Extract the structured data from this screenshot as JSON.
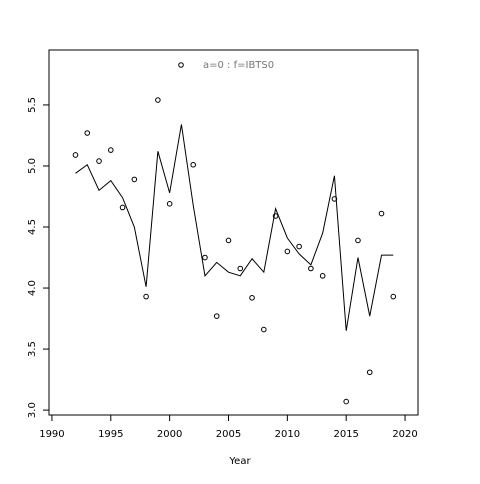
{
  "chart_data": {
    "type": "scatter-line",
    "xlabel": "Year",
    "x": [
      1992,
      1993,
      1994,
      1995,
      1996,
      1997,
      1998,
      1999,
      2000,
      2001,
      2002,
      2003,
      2004,
      2005,
      2006,
      2007,
      2008,
      2009,
      2010,
      2011,
      2012,
      2013,
      2014,
      2015,
      2016,
      2017,
      2018,
      2019
    ],
    "series": [
      {
        "name": "a=0  :  f=IBTS0",
        "color": "#000000",
        "marker": "circle",
        "values": [
          5.09,
          5.27,
          5.04,
          5.13,
          4.66,
          4.89,
          3.93,
          5.54,
          4.69,
          null,
          5.01,
          4.25,
          3.77,
          4.39,
          4.16,
          3.92,
          3.66,
          4.59,
          4.3,
          4.34,
          4.16,
          4.1,
          4.73,
          3.07,
          4.39,
          3.31,
          4.61,
          3.93
        ]
      },
      {
        "color": "#000000",
        "marker": "line",
        "values": [
          4.94,
          5.01,
          4.8,
          4.88,
          4.74,
          4.5,
          4.01,
          5.12,
          4.78,
          5.34,
          4.68,
          4.1,
          4.21,
          4.13,
          4.1,
          4.24,
          4.13,
          4.65,
          4.41,
          4.28,
          4.19,
          4.45,
          4.92,
          3.65,
          4.25,
          3.77,
          4.27,
          4.27
        ]
      }
    ],
    "xlim": [
      1989.75,
      2021.1
    ],
    "ylim": [
      2.96,
      5.95
    ],
    "xticks": [
      1990,
      1995,
      2000,
      2005,
      2010,
      2015,
      2020
    ],
    "yticks": [
      {
        "value": 3.0,
        "label": "3.0"
      },
      3.5,
      {
        "value": 4.0,
        "label": "4.0"
      },
      4.5,
      {
        "value": 5.0,
        "label": "5.0"
      },
      5.5
    ],
    "legend_color": "#777777"
  }
}
